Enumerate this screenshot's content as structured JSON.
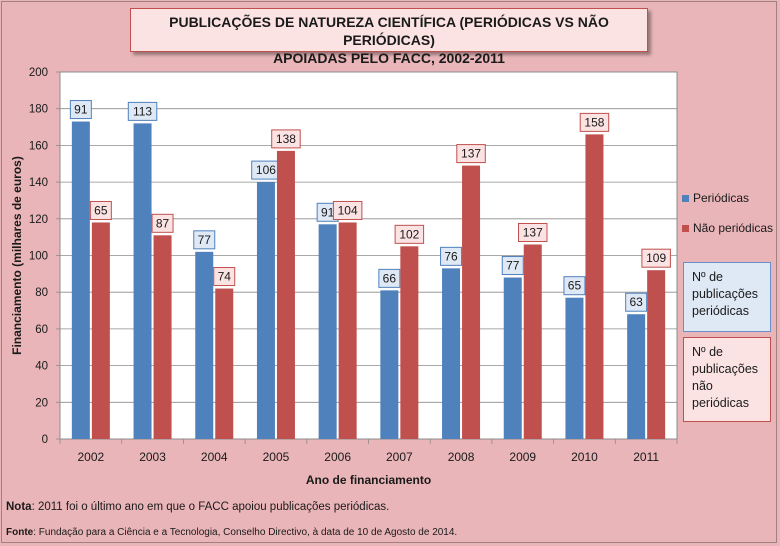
{
  "title": {
    "line1": "PUBLICAÇÕES DE NATUREZA CIENTÍFICA (PERIÓDICAS VS NÃO PERIÓDICAS)",
    "line2": "APOIADAS PELO FACC, 2002-2011"
  },
  "colors": {
    "periodicas": "#4f81bd",
    "nao_periodicas": "#c0504d",
    "background": "#e9b5b8",
    "plot_area": "#ffffff"
  },
  "chart_data": {
    "type": "bar",
    "categories": [
      "2002",
      "2003",
      "2004",
      "2005",
      "2006",
      "2007",
      "2008",
      "2009",
      "2010",
      "2011"
    ],
    "series": [
      {
        "name": "Periódicas",
        "values": [
          173,
          172,
          102,
          140,
          117,
          81,
          93,
          88,
          77,
          68
        ],
        "counts": [
          91,
          113,
          77,
          106,
          91,
          66,
          76,
          77,
          65,
          63
        ]
      },
      {
        "name": "Não periódicas",
        "values": [
          118,
          111,
          82,
          157,
          118,
          105,
          149,
          106,
          166,
          92
        ],
        "counts": [
          65,
          87,
          74,
          138,
          104,
          102,
          137,
          137,
          158,
          109
        ]
      }
    ],
    "xlabel": "Ano de financiamento",
    "ylabel": "Financiamento (milhares de euros)",
    "ylim": [
      0,
      200
    ],
    "yticks": [
      0,
      20,
      40,
      60,
      80,
      100,
      120,
      140,
      160,
      180,
      200
    ],
    "grid": true,
    "legend": "right"
  },
  "notes": {
    "periodicas_lines": [
      "Nº de",
      "publicações",
      "periódicas"
    ],
    "nao_periodicas_lines": [
      "Nº de",
      "publicações",
      "não",
      "periódicas"
    ]
  },
  "footnote": {
    "label": "Nota",
    "text": ": 2011 foi o último ano em que o FACC apoiou publicações periódicas."
  },
  "source": {
    "label": "Fonte",
    "text": ": Fundação para a Ciência e a Tecnologia, Conselho Directivo, à data de 10 de Agosto de 2014."
  }
}
